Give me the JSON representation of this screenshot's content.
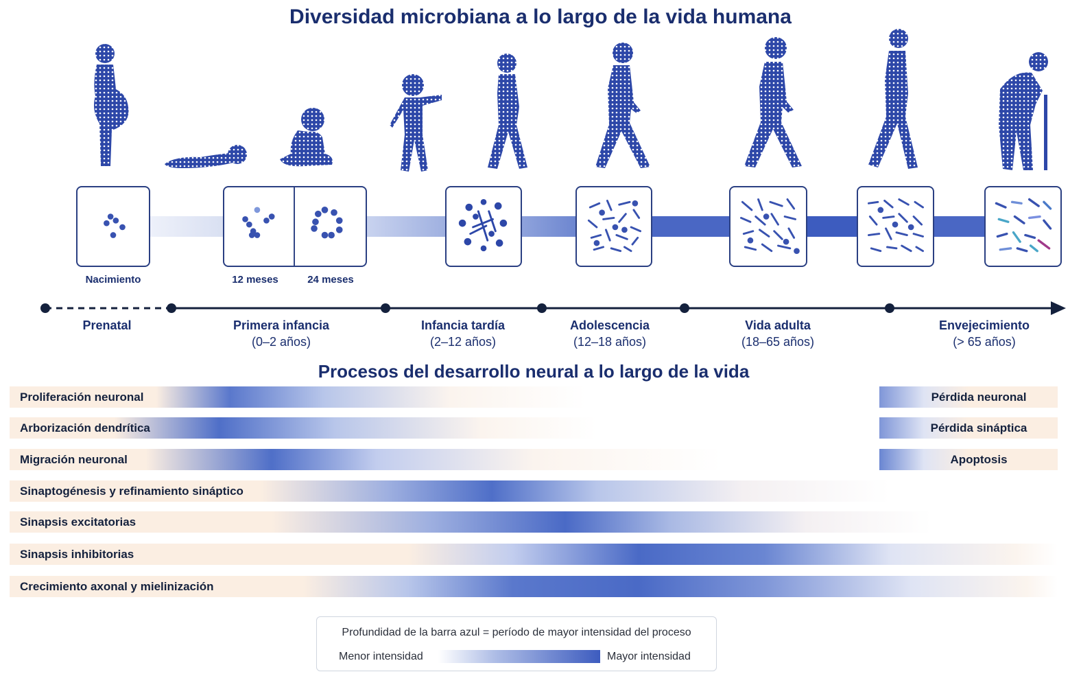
{
  "titles": {
    "main": "Diversidad microbiana a lo largo de la vida humana",
    "neural": "Procesos del desarrollo neural a lo largo de la vida"
  },
  "microbiome": {
    "labels": {
      "birth": "Nacimiento",
      "m12": "12 meses",
      "m24": "24 meses"
    }
  },
  "timeline": {
    "stages": [
      {
        "name": "Prenatal",
        "range": ""
      },
      {
        "name": "Primera infancia",
        "range": "(0–2 años)"
      },
      {
        "name": "Infancia tardía",
        "range": "(2–12 años)"
      },
      {
        "name": "Adolescencia",
        "range": "(12–18 años)"
      },
      {
        "name": "Vida adulta",
        "range": "(18–65 años)"
      },
      {
        "name": "Envejecimiento",
        "range": "(> 65 años)"
      }
    ]
  },
  "processes": [
    {
      "label": "Proliferación neuronal"
    },
    {
      "label": "Arborización dendrítica"
    },
    {
      "label": "Migración neuronal"
    },
    {
      "label": "Sinaptogénesis y refinamiento sináptico"
    },
    {
      "label": "Sinapsis excitatorias"
    },
    {
      "label": "Sinapsis inhibitorias"
    },
    {
      "label": "Crecimiento axonal y mielinización"
    }
  ],
  "late_processes": [
    {
      "label": "Pérdida neuronal"
    },
    {
      "label": "Pérdida sináptica"
    },
    {
      "label": "Apoptosis"
    }
  ],
  "legend": {
    "description": "Profundidad de la barra azul = período de mayor intensidad del proceso",
    "low": "Menor intensidad",
    "high": "Mayor intensidad"
  },
  "colors": {
    "navy": "#1a2e6e",
    "blue": "#3d5cbf",
    "peach": "#fbeee2"
  }
}
